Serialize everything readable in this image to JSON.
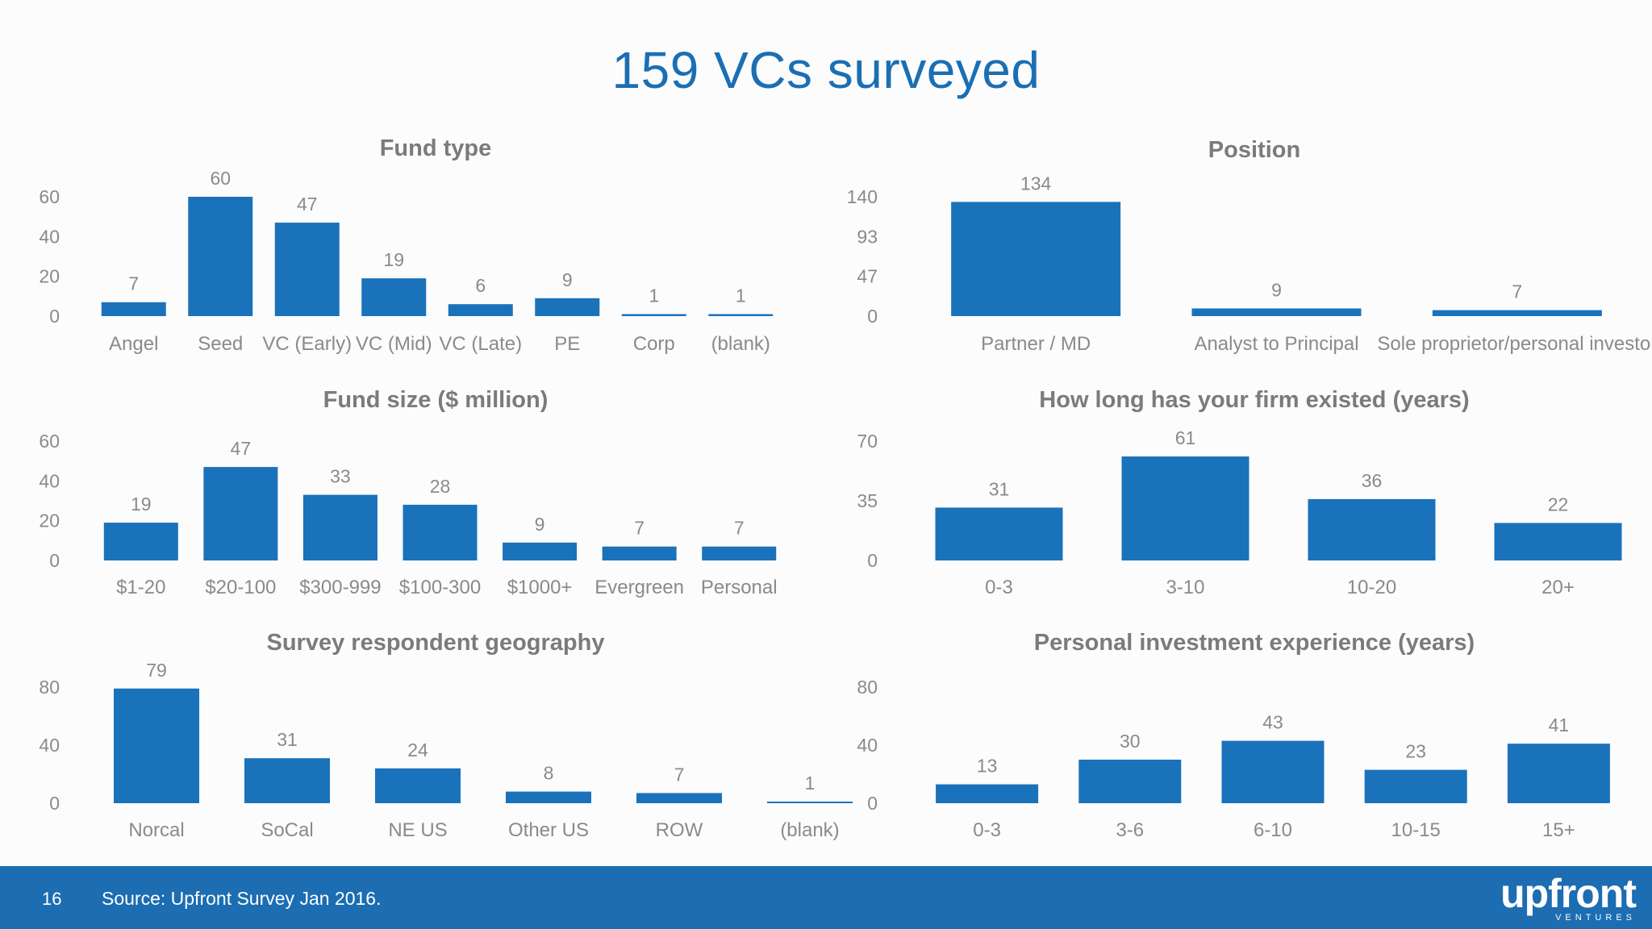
{
  "title": "159 VCs surveyed",
  "footer": {
    "page_number": "16",
    "source": "Source: Upfront Survey Jan 2016.",
    "logo": "upfront",
    "logo_sub": "VENTURES"
  },
  "colors": {
    "bar": "#1a72bb",
    "title": "#1a6fb4",
    "footer": "#1c6db1"
  },
  "chart_data": [
    {
      "id": "fund-type",
      "type": "bar",
      "title": "Fund type",
      "categories": [
        "Angel",
        "Seed",
        "VC (Early)",
        "VC (Mid)",
        "VC (Late)",
        "PE",
        "Corp",
        "(blank)"
      ],
      "values": [
        7,
        60,
        47,
        19,
        6,
        9,
        1,
        1
      ],
      "yticks": [
        0,
        20,
        40,
        60
      ],
      "ylim": [
        0,
        60
      ],
      "xlabel": "",
      "ylabel": ""
    },
    {
      "id": "position",
      "type": "bar",
      "title": "Position",
      "categories": [
        "Partner / MD",
        "Analyst to Principal",
        "Sole proprietor/personal investor"
      ],
      "values": [
        134,
        9,
        7
      ],
      "yticks": [
        0,
        47,
        93,
        140
      ],
      "ylim": [
        0,
        140
      ],
      "xlabel": "",
      "ylabel": ""
    },
    {
      "id": "fund-size",
      "type": "bar",
      "title": "Fund size ($ million)",
      "categories": [
        "$1-20",
        "$20-100",
        "$300-999",
        "$100-300",
        "$1000+",
        "Evergreen",
        "Personal"
      ],
      "values": [
        19,
        47,
        33,
        28,
        9,
        7,
        7
      ],
      "yticks": [
        0,
        20,
        40,
        60
      ],
      "ylim": [
        0,
        60
      ],
      "xlabel": "",
      "ylabel": ""
    },
    {
      "id": "firm-age",
      "type": "bar",
      "title": "How long has your firm existed (years)",
      "categories": [
        "0-3",
        "3-10",
        "10-20",
        "20+"
      ],
      "values": [
        31,
        61,
        36,
        22
      ],
      "yticks": [
        0,
        35,
        70
      ],
      "ylim": [
        0,
        70
      ],
      "xlabel": "",
      "ylabel": ""
    },
    {
      "id": "geography",
      "type": "bar",
      "title": "Survey respondent geography",
      "categories": [
        "Norcal",
        "SoCal",
        "NE US",
        "Other US",
        "ROW",
        "(blank)"
      ],
      "values": [
        79,
        31,
        24,
        8,
        7,
        1
      ],
      "yticks": [
        0,
        40,
        80
      ],
      "ylim": [
        0,
        80
      ],
      "xlabel": "",
      "ylabel": ""
    },
    {
      "id": "experience",
      "type": "bar",
      "title": "Personal investment experience (years)",
      "categories": [
        "0-3",
        "3-6",
        "6-10",
        "10-15",
        "15+"
      ],
      "values": [
        13,
        30,
        43,
        23,
        41
      ],
      "yticks": [
        0,
        40,
        80
      ],
      "ylim": [
        0,
        80
      ],
      "xlabel": "",
      "ylabel": ""
    }
  ]
}
